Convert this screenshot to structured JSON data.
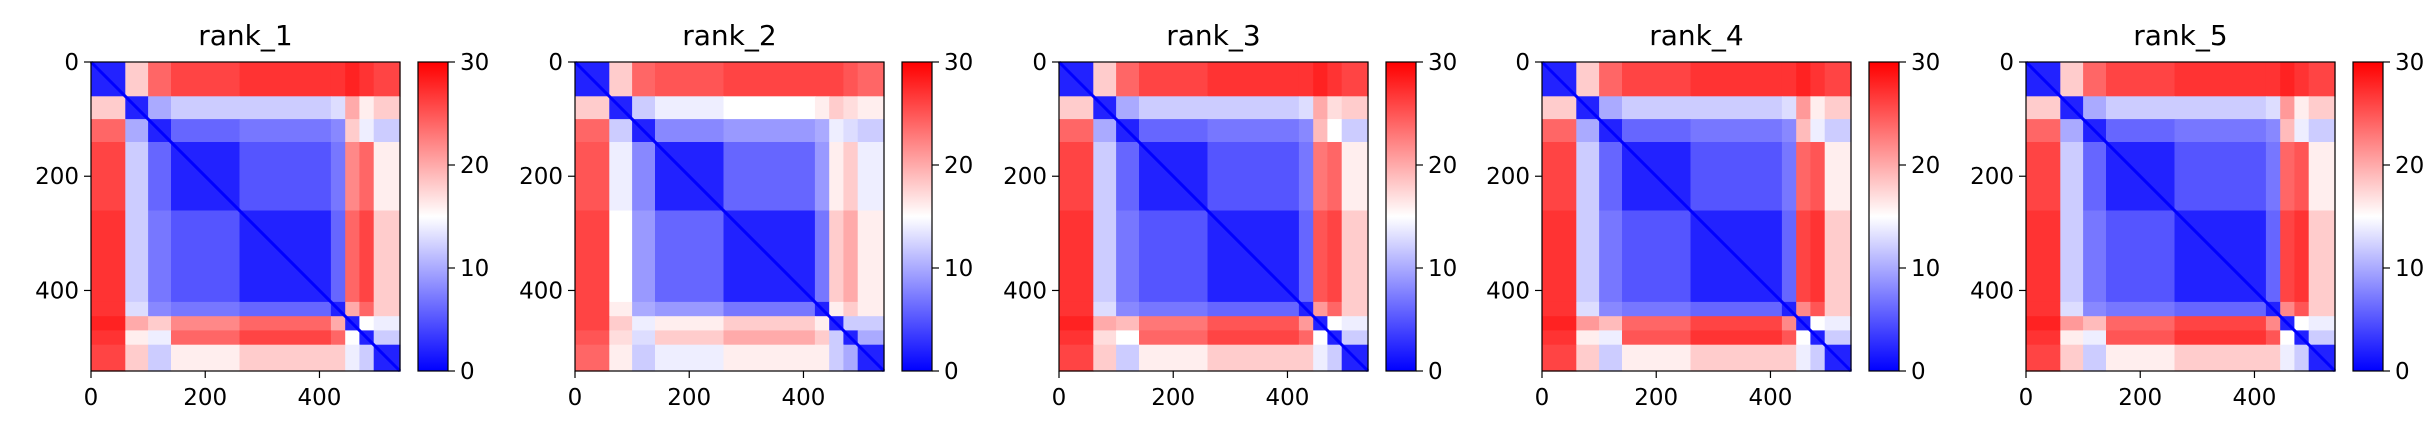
{
  "figure": {
    "panels": [
      "rank_1",
      "rank_2",
      "rank_3",
      "rank_4",
      "rank_5"
    ]
  },
  "chart_data": [
    {
      "type": "heatmap",
      "title": "rank_1",
      "xticks": [
        0,
        200,
        400
      ],
      "yticks": [
        0,
        200,
        400
      ],
      "xlim": [
        0,
        541
      ],
      "ylim": [
        541,
        0
      ],
      "colorbar": {
        "ticks": [
          0,
          10,
          20,
          30
        ],
        "range": [
          0,
          30
        ],
        "colormap": "bwr",
        "low_color": "#0000ff",
        "mid_color": "#ffffff",
        "high_color": "#ff0000"
      },
      "z_grid": {
        "row_bins": [
          0,
          60,
          100,
          140,
          260,
          420,
          445,
          470,
          495,
          541
        ],
        "col_bins": [
          0,
          60,
          100,
          140,
          260,
          420,
          445,
          470,
          495,
          541
        ],
        "values": [
          [
            2,
            18,
            24,
            26,
            27,
            27,
            28,
            27,
            26
          ],
          [
            18,
            2,
            10,
            12,
            12,
            13,
            20,
            16,
            18
          ],
          [
            24,
            10,
            2,
            6,
            7,
            8,
            18,
            14,
            12
          ],
          [
            26,
            12,
            6,
            2,
            5,
            7,
            22,
            24,
            16
          ],
          [
            27,
            12,
            7,
            5,
            2,
            6,
            24,
            26,
            18
          ],
          [
            27,
            13,
            8,
            7,
            6,
            2,
            20,
            24,
            18
          ],
          [
            28,
            20,
            18,
            22,
            24,
            20,
            2,
            15,
            14
          ],
          [
            27,
            16,
            14,
            24,
            26,
            24,
            15,
            2,
            12
          ],
          [
            26,
            18,
            12,
            16,
            18,
            18,
            14,
            12,
            2
          ]
        ]
      }
    },
    {
      "type": "heatmap",
      "title": "rank_2",
      "xticks": [
        0,
        200,
        400
      ],
      "yticks": [
        0,
        200,
        400
      ],
      "xlim": [
        0,
        541
      ],
      "ylim": [
        541,
        0
      ],
      "colorbar": {
        "ticks": [
          0,
          10,
          20,
          30
        ],
        "range": [
          0,
          30
        ],
        "colormap": "bwr",
        "low_color": "#0000ff",
        "mid_color": "#ffffff",
        "high_color": "#ff0000"
      },
      "z_grid": {
        "row_bins": [
          0,
          60,
          100,
          140,
          260,
          420,
          445,
          470,
          495,
          541
        ],
        "col_bins": [
          0,
          60,
          100,
          140,
          260,
          420,
          445,
          470,
          495,
          541
        ],
        "values": [
          [
            2,
            18,
            24,
            25,
            26,
            26,
            26,
            25,
            24
          ],
          [
            18,
            2,
            12,
            14,
            15,
            16,
            18,
            17,
            16
          ],
          [
            24,
            12,
            2,
            8,
            9,
            10,
            14,
            13,
            12
          ],
          [
            25,
            14,
            8,
            2,
            6,
            9,
            16,
            18,
            14
          ],
          [
            26,
            15,
            9,
            6,
            2,
            7,
            18,
            20,
            16
          ],
          [
            26,
            16,
            10,
            9,
            7,
            2,
            16,
            18,
            16
          ],
          [
            26,
            18,
            14,
            16,
            18,
            16,
            2,
            12,
            12
          ],
          [
            25,
            17,
            13,
            18,
            20,
            18,
            12,
            2,
            10
          ],
          [
            24,
            16,
            12,
            14,
            16,
            16,
            12,
            10,
            2
          ]
        ]
      }
    },
    {
      "type": "heatmap",
      "title": "rank_3",
      "xticks": [
        0,
        200,
        400
      ],
      "yticks": [
        0,
        200,
        400
      ],
      "xlim": [
        0,
        541
      ],
      "ylim": [
        541,
        0
      ],
      "colorbar": {
        "ticks": [
          0,
          10,
          20,
          30
        ],
        "range": [
          0,
          30
        ],
        "colormap": "bwr",
        "low_color": "#0000ff",
        "mid_color": "#ffffff",
        "high_color": "#ff0000"
      },
      "z_grid": {
        "row_bins": [
          0,
          60,
          100,
          140,
          260,
          420,
          445,
          470,
          495,
          541
        ],
        "col_bins": [
          0,
          60,
          100,
          140,
          260,
          420,
          445,
          470,
          495,
          541
        ],
        "values": [
          [
            2,
            18,
            24,
            26,
            27,
            27,
            28,
            27,
            26
          ],
          [
            18,
            2,
            10,
            12,
            12,
            13,
            20,
            17,
            18
          ],
          [
            24,
            10,
            2,
            6,
            7,
            8,
            19,
            15,
            12
          ],
          [
            26,
            12,
            6,
            2,
            5,
            7,
            23,
            24,
            16
          ],
          [
            27,
            12,
            7,
            5,
            2,
            6,
            25,
            26,
            18
          ],
          [
            27,
            13,
            8,
            7,
            6,
            2,
            21,
            24,
            18
          ],
          [
            28,
            20,
            19,
            23,
            25,
            21,
            2,
            15,
            14
          ],
          [
            27,
            17,
            15,
            24,
            26,
            24,
            15,
            2,
            12
          ],
          [
            26,
            18,
            12,
            16,
            18,
            18,
            14,
            12,
            2
          ]
        ]
      }
    },
    {
      "type": "heatmap",
      "title": "rank_4",
      "xticks": [
        0,
        200,
        400
      ],
      "yticks": [
        0,
        200,
        400
      ],
      "xlim": [
        0,
        541
      ],
      "ylim": [
        541,
        0
      ],
      "colorbar": {
        "ticks": [
          0,
          10,
          20,
          30
        ],
        "range": [
          0,
          30
        ],
        "colormap": "bwr",
        "low_color": "#0000ff",
        "mid_color": "#ffffff",
        "high_color": "#ff0000"
      },
      "z_grid": {
        "row_bins": [
          0,
          60,
          100,
          140,
          260,
          420,
          445,
          470,
          495,
          541
        ],
        "col_bins": [
          0,
          60,
          100,
          140,
          260,
          420,
          445,
          470,
          495,
          541
        ],
        "values": [
          [
            2,
            18,
            24,
            26,
            27,
            27,
            28,
            27,
            26
          ],
          [
            18,
            2,
            10,
            12,
            12,
            13,
            21,
            16,
            18
          ],
          [
            24,
            10,
            2,
            6,
            7,
            8,
            19,
            14,
            12
          ],
          [
            26,
            12,
            6,
            2,
            5,
            7,
            24,
            25,
            16
          ],
          [
            27,
            12,
            7,
            5,
            2,
            6,
            26,
            27,
            18
          ],
          [
            27,
            13,
            8,
            7,
            6,
            2,
            22,
            25,
            18
          ],
          [
            28,
            21,
            19,
            24,
            26,
            22,
            2,
            15,
            14
          ],
          [
            27,
            16,
            14,
            25,
            27,
            25,
            15,
            2,
            12
          ],
          [
            26,
            18,
            12,
            16,
            18,
            18,
            14,
            12,
            2
          ]
        ]
      }
    },
    {
      "type": "heatmap",
      "title": "rank_5",
      "xticks": [
        0,
        200,
        400
      ],
      "yticks": [
        0,
        200,
        400
      ],
      "xlim": [
        0,
        541
      ],
      "ylim": [
        541,
        0
      ],
      "colorbar": {
        "ticks": [
          0,
          10,
          20,
          30
        ],
        "range": [
          0,
          30
        ],
        "colormap": "bwr",
        "low_color": "#0000ff",
        "mid_color": "#ffffff",
        "high_color": "#ff0000"
      },
      "z_grid": {
        "row_bins": [
          0,
          60,
          100,
          140,
          260,
          420,
          445,
          470,
          495,
          541
        ],
        "col_bins": [
          0,
          60,
          100,
          140,
          260,
          420,
          445,
          470,
          495,
          541
        ],
        "values": [
          [
            2,
            18,
            24,
            26,
            27,
            27,
            28,
            27,
            26
          ],
          [
            18,
            2,
            10,
            12,
            12,
            13,
            21,
            16,
            18
          ],
          [
            24,
            10,
            2,
            6,
            7,
            8,
            19,
            14,
            12
          ],
          [
            26,
            12,
            6,
            2,
            5,
            7,
            24,
            25,
            16
          ],
          [
            27,
            12,
            7,
            5,
            2,
            6,
            26,
            27,
            18
          ],
          [
            27,
            13,
            8,
            7,
            6,
            2,
            22,
            25,
            18
          ],
          [
            28,
            21,
            19,
            24,
            26,
            22,
            2,
            15,
            14
          ],
          [
            27,
            16,
            14,
            25,
            27,
            25,
            15,
            2,
            12
          ],
          [
            26,
            18,
            12,
            16,
            18,
            18,
            14,
            12,
            2
          ]
        ]
      }
    }
  ]
}
